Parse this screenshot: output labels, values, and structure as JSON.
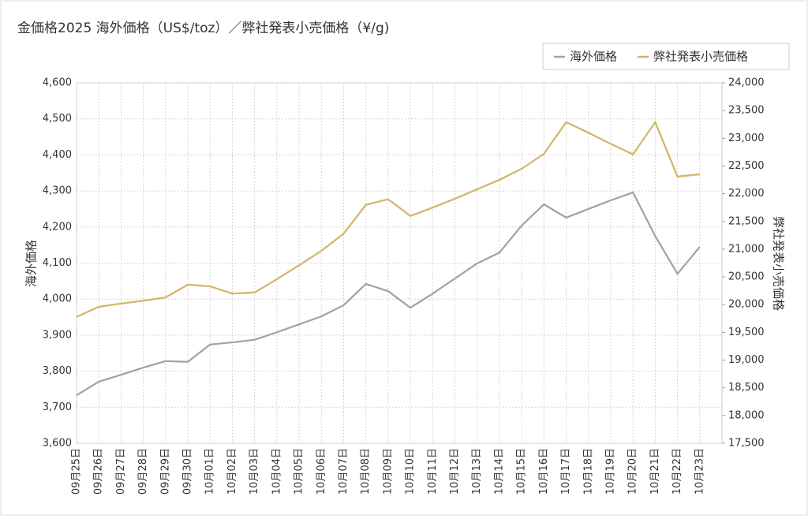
{
  "chart_data": {
    "type": "line",
    "title": "金価格2025 海外価格（US$/toz）／弊社発表小売価格（¥/g)",
    "y_label": "海外価格",
    "y2_label": "弊社発表小売価格",
    "categories": [
      "09月25日",
      "09月26日",
      "09月27日",
      "09月28日",
      "09月29日",
      "09月30日",
      "10月01日",
      "10月02日",
      "10月03日",
      "10月04日",
      "10月05日",
      "10月06日",
      "10月07日",
      "10月08日",
      "10月09日",
      "10月10日",
      "10月11日",
      "10月12日",
      "10月13日",
      "10月14日",
      "10月15日",
      "10月16日",
      "10月17日",
      "10月18日",
      "10月19日",
      "10月20日",
      "10月21日",
      "10月22日",
      "10月23日"
    ],
    "series": [
      {
        "name": "海外価格",
        "color": "#a0a0a8",
        "axis": "y",
        "values": [
          3733,
          3771,
          3790,
          3810,
          3828,
          3826,
          3874,
          3880,
          3887,
          3908,
          3930,
          3952,
          3983,
          4042,
          4022,
          3976,
          4015,
          4057,
          4099,
          4129,
          4204,
          4263,
          4226,
          4250,
          4274,
          4296,
          4175,
          4070,
          4145
        ]
      },
      {
        "name": "弊社発表小売価格",
        "color": "#d2b466",
        "axis": "y2",
        "values": [
          19780,
          19960,
          20020,
          20070,
          20130,
          20360,
          20330,
          20200,
          20220,
          20460,
          20710,
          20970,
          21280,
          21800,
          21900,
          21600,
          21750,
          21910,
          22080,
          22250,
          22450,
          22720,
          23290,
          23100,
          22900,
          22710,
          23290,
          22310,
          22350
        ]
      }
    ],
    "ylim": [
      3600,
      4600
    ],
    "yticks": [
      {
        "value": 3600,
        "label": "3,600"
      },
      {
        "value": 3700,
        "label": "3,700"
      },
      {
        "value": 3800,
        "label": "3,800"
      },
      {
        "value": 3900,
        "label": "3,900"
      },
      {
        "value": 4000,
        "label": "4,000"
      },
      {
        "value": 4100,
        "label": "4,100"
      },
      {
        "value": 4200,
        "label": "4,200"
      },
      {
        "value": 4300,
        "label": "4,300"
      },
      {
        "value": 4400,
        "label": "4,400"
      },
      {
        "value": 4500,
        "label": "4,500"
      },
      {
        "value": 4600,
        "label": "4,600"
      }
    ],
    "y2lim": [
      17500,
      24000
    ],
    "y2ticks": [
      {
        "value": 17500,
        "label": "17,500"
      },
      {
        "value": 18000,
        "label": "18,000"
      },
      {
        "value": 18500,
        "label": "18,500"
      },
      {
        "value": 19000,
        "label": "19,000"
      },
      {
        "value": 19500,
        "label": "19,500"
      },
      {
        "value": 20000,
        "label": "20,000"
      },
      {
        "value": 20500,
        "label": "20,500"
      },
      {
        "value": 21000,
        "label": "21,000"
      },
      {
        "value": 21500,
        "label": "21,500"
      },
      {
        "value": 22000,
        "label": "22,000"
      },
      {
        "value": 22500,
        "label": "22,500"
      },
      {
        "value": 23000,
        "label": "23,000"
      },
      {
        "value": 23500,
        "label": "23,500"
      },
      {
        "value": 24000,
        "label": "24,000"
      }
    ],
    "grid": true,
    "legend": "top-right"
  }
}
